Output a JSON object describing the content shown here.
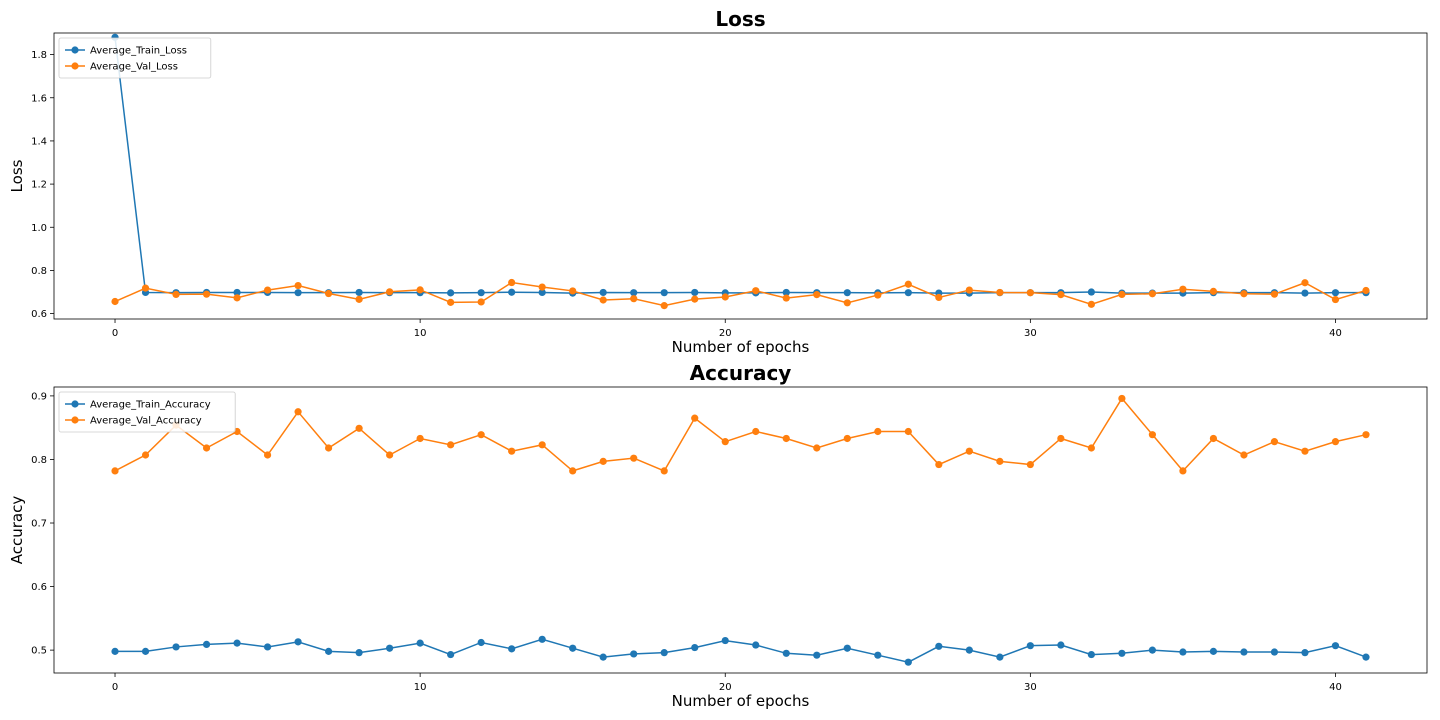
{
  "colors": {
    "train": "#1f77b4",
    "val": "#ff7f0e"
  },
  "chart_data": [
    {
      "type": "line",
      "title": "Loss",
      "xlabel": "Number of epochs",
      "ylabel": "Loss",
      "xlim": [
        -2,
        43
      ],
      "ylim": [
        0.575,
        1.9
      ],
      "xticks": [
        0,
        10,
        20,
        30,
        40
      ],
      "yticks": [
        0.6,
        0.8,
        1.0,
        1.2,
        1.4,
        1.6,
        1.8
      ],
      "ytick_labels": [
        "0.6",
        "0.8",
        "1.0",
        "1.2",
        "1.4",
        "1.6",
        "1.8"
      ],
      "grid": false,
      "legend_position": "top-left",
      "x": [
        0,
        1,
        2,
        3,
        4,
        5,
        6,
        7,
        8,
        9,
        10,
        11,
        12,
        13,
        14,
        15,
        16,
        17,
        18,
        19,
        20,
        21,
        22,
        23,
        24,
        25,
        26,
        27,
        28,
        29,
        30,
        31,
        32,
        33,
        34,
        35,
        36,
        37,
        38,
        39,
        40,
        41
      ],
      "series": [
        {
          "name": "Average_Train_Loss",
          "color": "#1f77b4",
          "values": [
            1.88,
            0.698,
            0.697,
            0.698,
            0.698,
            0.698,
            0.697,
            0.697,
            0.698,
            0.697,
            0.697,
            0.696,
            0.697,
            0.699,
            0.698,
            0.695,
            0.698,
            0.697,
            0.697,
            0.698,
            0.696,
            0.696,
            0.698,
            0.697,
            0.697,
            0.696,
            0.697,
            0.695,
            0.695,
            0.697,
            0.697,
            0.697,
            0.7,
            0.695,
            0.695,
            0.695,
            0.697,
            0.697,
            0.697,
            0.695,
            0.697,
            0.697
          ]
        },
        {
          "name": "Average_Val_Loss",
          "color": "#ff7f0e",
          "values": [
            0.656,
            0.718,
            0.689,
            0.69,
            0.673,
            0.709,
            0.73,
            0.693,
            0.666,
            0.701,
            0.71,
            0.652,
            0.654,
            0.744,
            0.723,
            0.705,
            0.663,
            0.669,
            0.637,
            0.667,
            0.677,
            0.706,
            0.672,
            0.688,
            0.65,
            0.686,
            0.736,
            0.675,
            0.709,
            0.698,
            0.697,
            0.688,
            0.643,
            0.689,
            0.692,
            0.713,
            0.703,
            0.692,
            0.69,
            0.743,
            0.665,
            0.707
          ]
        }
      ]
    },
    {
      "type": "line",
      "title": "Accuracy",
      "xlabel": "Number of epochs",
      "ylabel": "Accuracy",
      "xlim": [
        -2,
        43
      ],
      "ylim": [
        0.464,
        0.914
      ],
      "xticks": [
        0,
        10,
        20,
        30,
        40
      ],
      "yticks": [
        0.5,
        0.6,
        0.7,
        0.8,
        0.9
      ],
      "ytick_labels": [
        "0.5",
        "0.6",
        "0.7",
        "0.8",
        "0.9"
      ],
      "grid": false,
      "legend_position": "top-left",
      "x": [
        0,
        1,
        2,
        3,
        4,
        5,
        6,
        7,
        8,
        9,
        10,
        11,
        12,
        13,
        14,
        15,
        16,
        17,
        18,
        19,
        20,
        21,
        22,
        23,
        24,
        25,
        26,
        27,
        28,
        29,
        30,
        31,
        32,
        33,
        34,
        35,
        36,
        37,
        38,
        39,
        40,
        41
      ],
      "series": [
        {
          "name": "Average_Train_Accuracy",
          "color": "#1f77b4",
          "values": [
            0.498,
            0.498,
            0.505,
            0.509,
            0.511,
            0.505,
            0.513,
            0.498,
            0.496,
            0.503,
            0.511,
            0.493,
            0.512,
            0.502,
            0.517,
            0.503,
            0.489,
            0.494,
            0.496,
            0.504,
            0.515,
            0.508,
            0.495,
            0.492,
            0.503,
            0.492,
            0.481,
            0.506,
            0.5,
            0.489,
            0.507,
            0.508,
            0.493,
            0.495,
            0.5,
            0.497,
            0.498,
            0.497,
            0.497,
            0.496,
            0.507,
            0.489
          ]
        },
        {
          "name": "Average_Val_Accuracy",
          "color": "#ff7f0e",
          "values": [
            0.782,
            0.807,
            0.854,
            0.818,
            0.844,
            0.807,
            0.875,
            0.818,
            0.849,
            0.807,
            0.833,
            0.823,
            0.839,
            0.813,
            0.823,
            0.782,
            0.797,
            0.802,
            0.782,
            0.865,
            0.828,
            0.844,
            0.833,
            0.818,
            0.833,
            0.844,
            0.844,
            0.792,
            0.813,
            0.797,
            0.792,
            0.833,
            0.818,
            0.896,
            0.839,
            0.782,
            0.833,
            0.807,
            0.828,
            0.813,
            0.828,
            0.839
          ]
        }
      ]
    }
  ]
}
